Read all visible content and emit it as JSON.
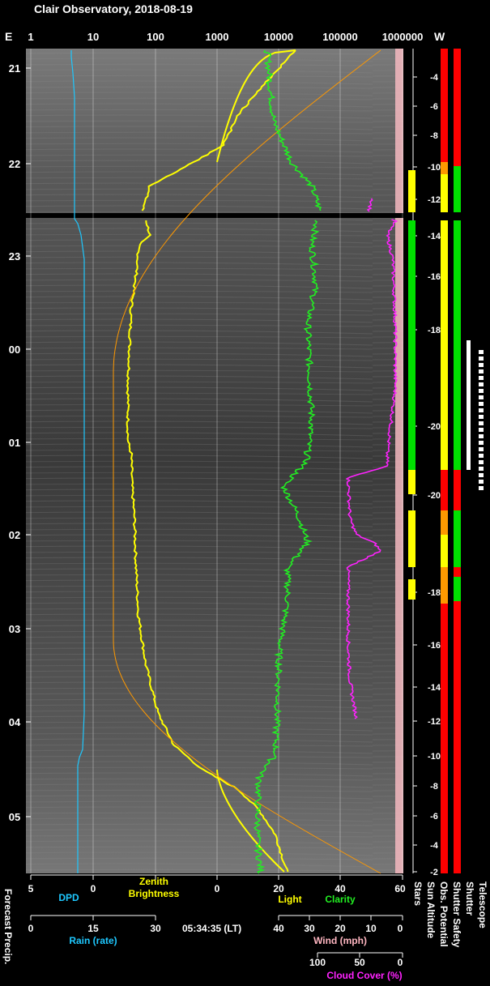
{
  "header": {
    "title": "Clair Observatory, 2018-08-19",
    "east_label": "E",
    "west_label": "W"
  },
  "chart_data": {
    "type": "line",
    "top_axis_ticks": [
      "1",
      "10",
      "100",
      "1000",
      "10000",
      "100000",
      "1000000"
    ],
    "time_ticks": [
      "21",
      "22",
      "23",
      "00",
      "01",
      "02",
      "03",
      "04",
      "05"
    ],
    "sun_altitude_ticks": [
      "-4",
      "-6",
      "-8",
      "-10",
      "-12",
      "-14",
      "-16",
      "-18",
      "-20",
      "-20",
      "-18",
      "-16",
      "-14",
      "-12",
      "-10",
      "-8",
      "-6",
      "-4",
      "-2"
    ],
    "bottom_axes": [
      {
        "ticks": [
          "5",
          "0"
        ],
        "label": "DPD",
        "color": "#1ec8ff"
      },
      {
        "ticks": [
          "0",
          "20"
        ],
        "label": "Zenith Brightness",
        "color": "#ffff00"
      },
      {
        "ticks": [
          "40",
          "60"
        ],
        "label": "Light",
        "color": "#ffff00"
      },
      {
        "ticks": [],
        "label": "Clarity",
        "color": "#22ee22"
      },
      {
        "ticks": [
          "0",
          "15",
          "30"
        ],
        "label": "Rain (rate)",
        "color": "#1ec8ff"
      },
      {
        "ticks": [
          "40",
          "30",
          "20",
          "10",
          "0"
        ],
        "label": "Wind (mph)",
        "color": "#ffb6c1"
      },
      {
        "ticks": [
          "100",
          "50",
          "0"
        ],
        "label": "Cloud Cover (%)",
        "color": "#ff22ff"
      }
    ],
    "timestamp": "05:34:35 (LT)",
    "left_label": "Forecast Precip.",
    "status_labels": [
      "Stars",
      "Sun Altitude",
      "Obs. Potential",
      "Shutter Safety",
      "Shutter",
      "Telescope"
    ],
    "series": [
      {
        "name": "DPD",
        "color": "#1ec8ff"
      },
      {
        "name": "Zenith Brightness",
        "color": "#ffff00"
      },
      {
        "name": "Light",
        "color": "#ffff00"
      },
      {
        "name": "Clarity",
        "color": "#22ee22"
      },
      {
        "name": "Cloud Cover (%)",
        "color": "#ff22ff"
      }
    ],
    "colors": {
      "red": "#ff0000",
      "yellow": "#ffff00",
      "green": "#00e000",
      "orange": "#ff9900",
      "sun": "#ff9900"
    }
  }
}
